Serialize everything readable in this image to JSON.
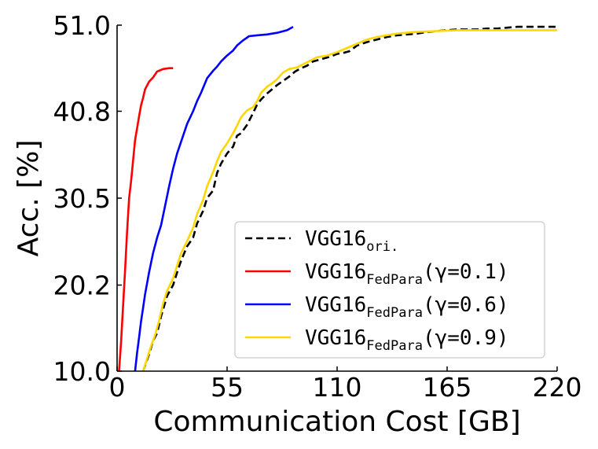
{
  "chart_data": {
    "type": "line",
    "xlabel": "Communication Cost [GB]",
    "ylabel": "Acc. [%]",
    "xlim": [
      0,
      220
    ],
    "ylim": [
      10.0,
      51.0
    ],
    "xticks": [
      "0",
      "55",
      "110",
      "165",
      "220"
    ],
    "yticks": [
      "10.0",
      "20.2",
      "30.5",
      "40.8",
      "51.0"
    ],
    "xtick_values": [
      0,
      55,
      110,
      165,
      220
    ],
    "ytick_values": [
      10.0,
      20.2,
      30.5,
      40.8,
      51.0
    ],
    "legend_position": "lower-right",
    "grid": false,
    "series": [
      {
        "name": "VGG16",
        "name_sub": "ori.",
        "name_suffix": "",
        "color": "#000000",
        "dash": "dashed",
        "x": [
          13,
          16,
          18,
          20,
          22,
          25,
          28,
          30,
          32,
          35,
          38,
          40,
          43,
          45,
          48,
          50,
          52,
          55,
          58,
          60,
          62,
          65,
          68,
          70,
          72,
          75,
          78,
          80,
          83,
          86,
          89,
          92,
          95,
          98,
          101,
          104,
          107,
          110,
          113,
          116,
          120,
          125,
          130,
          135,
          140,
          145,
          150,
          155,
          160,
          165,
          170,
          175,
          180,
          185,
          190,
          195,
          200,
          205,
          210,
          215,
          220
        ],
        "y": [
          10.0,
          12.0,
          13.6,
          14.5,
          16.5,
          18.9,
          20.2,
          21.7,
          23.1,
          24.8,
          25.8,
          27.5,
          29.0,
          30.5,
          31.4,
          33.5,
          34.6,
          35.8,
          36.6,
          37.9,
          38.2,
          39.2,
          40.6,
          41.6,
          42.2,
          42.9,
          43.5,
          43.9,
          44.4,
          44.9,
          45.5,
          45.9,
          46.2,
          46.7,
          46.9,
          47.1,
          47.3,
          47.6,
          47.7,
          47.9,
          48.6,
          49.0,
          49.3,
          49.6,
          49.8,
          49.9,
          50.0,
          50.2,
          50.3,
          50.4,
          50.5,
          50.5,
          50.5,
          50.6,
          50.6,
          50.7,
          50.8,
          50.8,
          50.8,
          50.8,
          50.8
        ]
      },
      {
        "name": "VGG16",
        "name_sub": "FedPara",
        "name_suffix": "(γ=0.1)",
        "color": "#ff0000",
        "dash": "solid",
        "x": [
          1,
          2,
          3,
          4,
          5,
          6,
          7,
          8,
          9,
          10,
          11,
          12,
          13,
          14,
          16,
          18,
          20,
          23,
          26,
          28
        ],
        "y": [
          10.0,
          13.5,
          17.7,
          22.0,
          26.5,
          30.5,
          32.5,
          35.0,
          37.4,
          38.8,
          40.2,
          41.5,
          42.4,
          43.4,
          44.3,
          44.8,
          45.5,
          45.8,
          45.9,
          45.9
        ]
      },
      {
        "name": "VGG16",
        "name_sub": "FedPara",
        "name_suffix": "(γ=0.6)",
        "color": "#0000ff",
        "dash": "solid",
        "x": [
          9,
          10,
          11,
          12,
          13,
          14,
          16,
          18,
          20,
          22,
          24,
          26,
          28,
          30,
          32,
          35,
          38,
          40,
          42,
          45,
          48,
          50,
          52,
          55,
          58,
          60,
          63,
          66,
          70,
          75,
          80,
          85,
          88
        ],
        "y": [
          10.0,
          12.2,
          14.0,
          15.9,
          17.5,
          19.1,
          21.7,
          24.0,
          25.8,
          27.3,
          29.6,
          31.9,
          34.0,
          35.8,
          37.2,
          39.3,
          40.8,
          42.0,
          43.0,
          44.7,
          45.6,
          46.1,
          46.7,
          47.4,
          48.0,
          48.6,
          49.2,
          49.7,
          49.8,
          49.9,
          50.1,
          50.4,
          50.8
        ]
      },
      {
        "name": "VGG16",
        "name_sub": "FedPara",
        "name_suffix": "(γ=0.9)",
        "color": "#ffd700",
        "dash": "solid",
        "x": [
          13,
          15,
          17,
          19,
          21,
          23,
          25,
          28,
          30,
          32,
          35,
          38,
          40,
          43,
          45,
          48,
          50,
          52,
          55,
          58,
          60,
          62,
          65,
          68,
          70,
          72,
          75,
          78,
          80,
          83,
          86,
          90,
          95,
          100,
          105,
          110,
          115,
          120,
          125,
          130,
          135,
          140,
          150,
          160,
          170,
          180,
          190,
          200,
          210,
          220
        ],
        "y": [
          10.0,
          11.5,
          13.0,
          14.3,
          16.0,
          18.0,
          19.5,
          21.0,
          22.5,
          24.0,
          25.4,
          27.0,
          28.6,
          30.3,
          31.9,
          33.6,
          34.9,
          36.0,
          37.0,
          38.2,
          39.1,
          40.1,
          40.9,
          41.3,
          42.0,
          43.0,
          43.7,
          44.2,
          44.6,
          45.4,
          45.8,
          46.0,
          46.6,
          47.2,
          47.4,
          47.8,
          48.3,
          48.8,
          49.3,
          49.6,
          49.8,
          50.0,
          50.2,
          50.3,
          50.4,
          50.4,
          50.4,
          50.4,
          50.4,
          50.4
        ]
      }
    ]
  }
}
